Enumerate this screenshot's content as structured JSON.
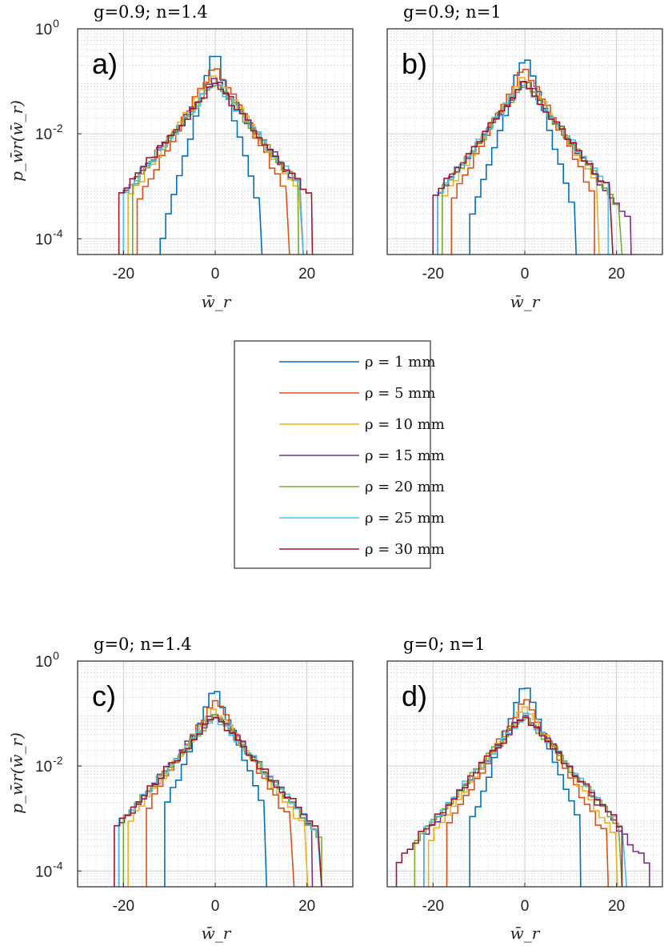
{
  "chart_data": [
    {
      "type": "line",
      "panel_letter": "a)",
      "title": "g=0.9; n=1.4",
      "xlabel": "w̄_r",
      "ylabel": "p_w̄r(w̄_r)",
      "yscale": "log",
      "xlim": [
        -30,
        30
      ],
      "ylim": [
        5e-05,
        1
      ],
      "xticks": [
        -20,
        0,
        20
      ],
      "yticks": [
        {
          "base": "10",
          "exp": "0"
        },
        {
          "base": "10",
          "exp": "-2"
        },
        {
          "base": "10",
          "exp": "-4"
        }
      ],
      "grid": true,
      "series": [
        {
          "name": "ρ = 1 mm",
          "color": "#0072BD",
          "sigma": 1.6,
          "peak": 0.42,
          "xmin": -12,
          "xmax": 9
        },
        {
          "name": "ρ = 5 mm",
          "color": "#D95319",
          "sigma": 3.2,
          "peak": 0.22,
          "xmin": -17,
          "xmax": 15
        },
        {
          "name": "ρ = 10 mm",
          "color": "#EDB120",
          "sigma": 4.0,
          "peak": 0.14,
          "xmin": -19,
          "xmax": 18
        },
        {
          "name": "ρ = 15 mm",
          "color": "#7E2F8E",
          "sigma": 4.5,
          "peak": 0.11,
          "xmin": -20,
          "xmax": 18
        },
        {
          "name": "ρ = 20 mm",
          "color": "#77AC30",
          "sigma": 4.6,
          "peak": 0.1,
          "xmin": -18,
          "xmax": 17
        },
        {
          "name": "ρ = 25 mm",
          "color": "#4DBEEE",
          "sigma": 4.7,
          "peak": 0.095,
          "xmin": -20,
          "xmax": 18
        },
        {
          "name": "ρ = 30 mm",
          "color": "#A2142F",
          "sigma": 4.9,
          "peak": 0.09,
          "xmin": -21,
          "xmax": 20
        }
      ]
    },
    {
      "type": "line",
      "panel_letter": "b)",
      "title": "g=0.9; n=1",
      "xlabel": "w̄_r",
      "ylabel": "",
      "yscale": "log",
      "xlim": [
        -30,
        30
      ],
      "ylim": [
        5e-05,
        1
      ],
      "xticks": [
        -20,
        0,
        20
      ],
      "yticks": [],
      "grid": true,
      "series": [
        {
          "name": "ρ = 1 mm",
          "color": "#0072BD",
          "sigma": 1.8,
          "peak": 0.38,
          "xmin": -12,
          "xmax": 10
        },
        {
          "name": "ρ = 5 mm",
          "color": "#D95319",
          "sigma": 3.1,
          "peak": 0.2,
          "xmin": -16,
          "xmax": 14
        },
        {
          "name": "ρ = 10 mm",
          "color": "#EDB120",
          "sigma": 3.8,
          "peak": 0.13,
          "xmin": -18,
          "xmax": 15
        },
        {
          "name": "ρ = 15 mm",
          "color": "#7E2F8E",
          "sigma": 4.2,
          "peak": 0.11,
          "xmin": -19,
          "xmax": 22
        },
        {
          "name": "ρ = 20 mm",
          "color": "#77AC30",
          "sigma": 4.3,
          "peak": 0.1,
          "xmin": -18,
          "xmax": 20
        },
        {
          "name": "ρ = 25 mm",
          "color": "#4DBEEE",
          "sigma": 4.5,
          "peak": 0.095,
          "xmin": -19,
          "xmax": 17
        },
        {
          "name": "ρ = 30 mm",
          "color": "#A2142F",
          "sigma": 4.6,
          "peak": 0.09,
          "xmin": -20,
          "xmax": 18
        }
      ]
    },
    {
      "type": "line",
      "panel_letter": "c)",
      "title": "g=0; n=1.4",
      "xlabel": "w̄_r",
      "ylabel": "p_w̄r(w̄_r)",
      "yscale": "log",
      "xlim": [
        -30,
        30
      ],
      "ylim": [
        5e-05,
        1
      ],
      "xticks": [
        -20,
        0,
        20
      ],
      "yticks": [
        {
          "base": "10",
          "exp": "0"
        },
        {
          "base": "10",
          "exp": "-2"
        },
        {
          "base": "10",
          "exp": "-4"
        }
      ],
      "grid": true,
      "series": [
        {
          "name": "ρ = 1 mm",
          "color": "#0072BD",
          "sigma": 2.3,
          "peak": 0.34,
          "xmin": -11,
          "xmax": 10
        },
        {
          "name": "ρ = 5 mm",
          "color": "#D95319",
          "sigma": 3.6,
          "peak": 0.18,
          "xmin": -15,
          "xmax": 16
        },
        {
          "name": "ρ = 10 mm",
          "color": "#EDB120",
          "sigma": 4.3,
          "peak": 0.13,
          "xmin": -19,
          "xmax": 19
        },
        {
          "name": "ρ = 15 mm",
          "color": "#7E2F8E",
          "sigma": 4.8,
          "peak": 0.11,
          "xmin": -21,
          "xmax": 20
        },
        {
          "name": "ρ = 20 mm",
          "color": "#77AC30",
          "sigma": 4.9,
          "peak": 0.1,
          "xmin": -20,
          "xmax": 22
        },
        {
          "name": "ρ = 25 mm",
          "color": "#4DBEEE",
          "sigma": 5.0,
          "peak": 0.095,
          "xmin": -21,
          "xmax": 22
        },
        {
          "name": "ρ = 30 mm",
          "color": "#A2142F",
          "sigma": 5.2,
          "peak": 0.09,
          "xmin": -22,
          "xmax": 22
        }
      ]
    },
    {
      "type": "line",
      "panel_letter": "d)",
      "title": "g=0; n=1",
      "xlabel": "w̄_r",
      "ylabel": "",
      "yscale": "log",
      "xlim": [
        -30,
        30
      ],
      "ylim": [
        5e-05,
        1
      ],
      "xticks": [
        -20,
        0,
        20
      ],
      "yticks": [],
      "grid": true,
      "series": [
        {
          "name": "ρ = 1 mm",
          "color": "#0072BD",
          "sigma": 2.2,
          "peak": 0.4,
          "xmin": -12,
          "xmax": 11
        },
        {
          "name": "ρ = 5 mm",
          "color": "#D95319",
          "sigma": 3.4,
          "peak": 0.19,
          "xmin": -17,
          "xmax": 17
        },
        {
          "name": "ρ = 10 mm",
          "color": "#EDB120",
          "sigma": 4.1,
          "peak": 0.13,
          "xmin": -21,
          "xmax": 19
        },
        {
          "name": "ρ = 15 mm",
          "color": "#7E2F8E",
          "sigma": 4.6,
          "peak": 0.11,
          "xmin": -22,
          "xmax": 26
        },
        {
          "name": "ρ = 20 mm",
          "color": "#77AC30",
          "sigma": 4.8,
          "peak": 0.1,
          "xmin": -24,
          "xmax": 20
        },
        {
          "name": "ρ = 25 mm",
          "color": "#4DBEEE",
          "sigma": 4.9,
          "peak": 0.095,
          "xmin": -22,
          "xmax": 21
        },
        {
          "name": "ρ = 30 mm",
          "color": "#A2142F",
          "sigma": 5.0,
          "peak": 0.09,
          "xmin": -28,
          "xmax": 20
        }
      ]
    }
  ],
  "legend": {
    "placement": "center",
    "entries": [
      {
        "label": "ρ = 1 mm",
        "color": "#0072BD"
      },
      {
        "label": "ρ = 5 mm",
        "color": "#D95319"
      },
      {
        "label": "ρ = 10 mm",
        "color": "#EDB120"
      },
      {
        "label": "ρ = 15 mm",
        "color": "#7E2F8E"
      },
      {
        "label": "ρ = 20 mm",
        "color": "#77AC30"
      },
      {
        "label": "ρ = 25 mm",
        "color": "#4DBEEE"
      },
      {
        "label": "ρ = 30 mm",
        "color": "#A2142F"
      }
    ]
  }
}
